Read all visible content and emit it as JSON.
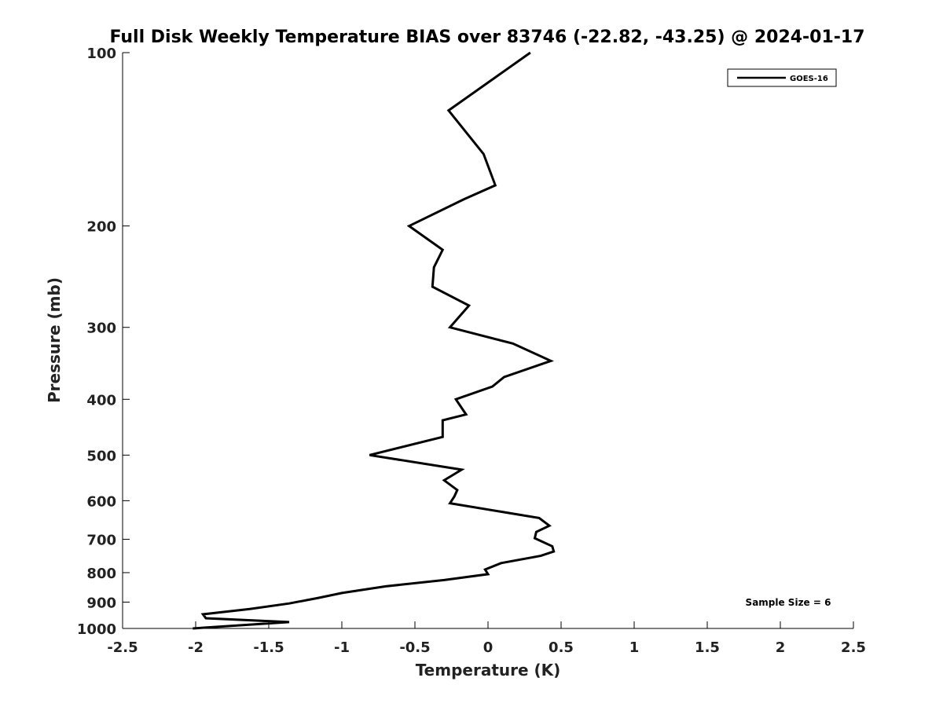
{
  "chart_data": {
    "type": "line",
    "title": "Full Disk Weekly Temperature BIAS over 83746 (-22.82, -43.25) @ 2024-01-17",
    "xlabel": "Temperature (K)",
    "ylabel": "Pressure (mb)",
    "xlim": [
      -2.5,
      2.5
    ],
    "ylim": [
      100,
      1000
    ],
    "y_scale": "log",
    "y_inverted": true,
    "x_ticks": [
      "-2.5",
      "-2",
      "-1.5",
      "-1",
      "-0.5",
      "0",
      "0.5",
      "1",
      "1.5",
      "2",
      "2.5"
    ],
    "y_ticks": [
      "100",
      "200",
      "300",
      "400",
      "500",
      "600",
      "700",
      "800",
      "900",
      "1000"
    ],
    "grid": false,
    "legend_position": "top-right",
    "annotation": "Sample Size = 6",
    "series": [
      {
        "name": "GOES-16",
        "color": "#000000",
        "points": [
          {
            "x": 0.29,
            "p": 100
          },
          {
            "x": -0.27,
            "p": 126
          },
          {
            "x": -0.03,
            "p": 150
          },
          {
            "x": 0.05,
            "p": 170
          },
          {
            "x": -0.17,
            "p": 180
          },
          {
            "x": -0.54,
            "p": 200
          },
          {
            "x": -0.31,
            "p": 220
          },
          {
            "x": -0.37,
            "p": 236
          },
          {
            "x": -0.38,
            "p": 255
          },
          {
            "x": -0.13,
            "p": 275
          },
          {
            "x": -0.26,
            "p": 300
          },
          {
            "x": 0.17,
            "p": 320
          },
          {
            "x": 0.43,
            "p": 343
          },
          {
            "x": 0.11,
            "p": 366
          },
          {
            "x": 0.03,
            "p": 380
          },
          {
            "x": -0.22,
            "p": 400
          },
          {
            "x": -0.15,
            "p": 425
          },
          {
            "x": -0.31,
            "p": 435
          },
          {
            "x": -0.31,
            "p": 465
          },
          {
            "x": -0.81,
            "p": 500
          },
          {
            "x": -0.18,
            "p": 530
          },
          {
            "x": -0.3,
            "p": 553
          },
          {
            "x": -0.21,
            "p": 575
          },
          {
            "x": -0.23,
            "p": 590
          },
          {
            "x": -0.26,
            "p": 606
          },
          {
            "x": 0.35,
            "p": 643
          },
          {
            "x": 0.42,
            "p": 663
          },
          {
            "x": 0.33,
            "p": 680
          },
          {
            "x": 0.32,
            "p": 697
          },
          {
            "x": 0.44,
            "p": 720
          },
          {
            "x": 0.45,
            "p": 735
          },
          {
            "x": 0.36,
            "p": 748
          },
          {
            "x": 0.09,
            "p": 770
          },
          {
            "x": -0.02,
            "p": 790
          },
          {
            "x": 0.0,
            "p": 805
          },
          {
            "x": -0.3,
            "p": 824
          },
          {
            "x": -0.7,
            "p": 845
          },
          {
            "x": -1.0,
            "p": 868
          },
          {
            "x": -1.16,
            "p": 885
          },
          {
            "x": -1.36,
            "p": 905
          },
          {
            "x": -1.63,
            "p": 925
          },
          {
            "x": -1.95,
            "p": 945
          },
          {
            "x": -1.93,
            "p": 960
          },
          {
            "x": -1.36,
            "p": 975
          },
          {
            "x": -2.02,
            "p": 1000
          }
        ]
      }
    ]
  }
}
